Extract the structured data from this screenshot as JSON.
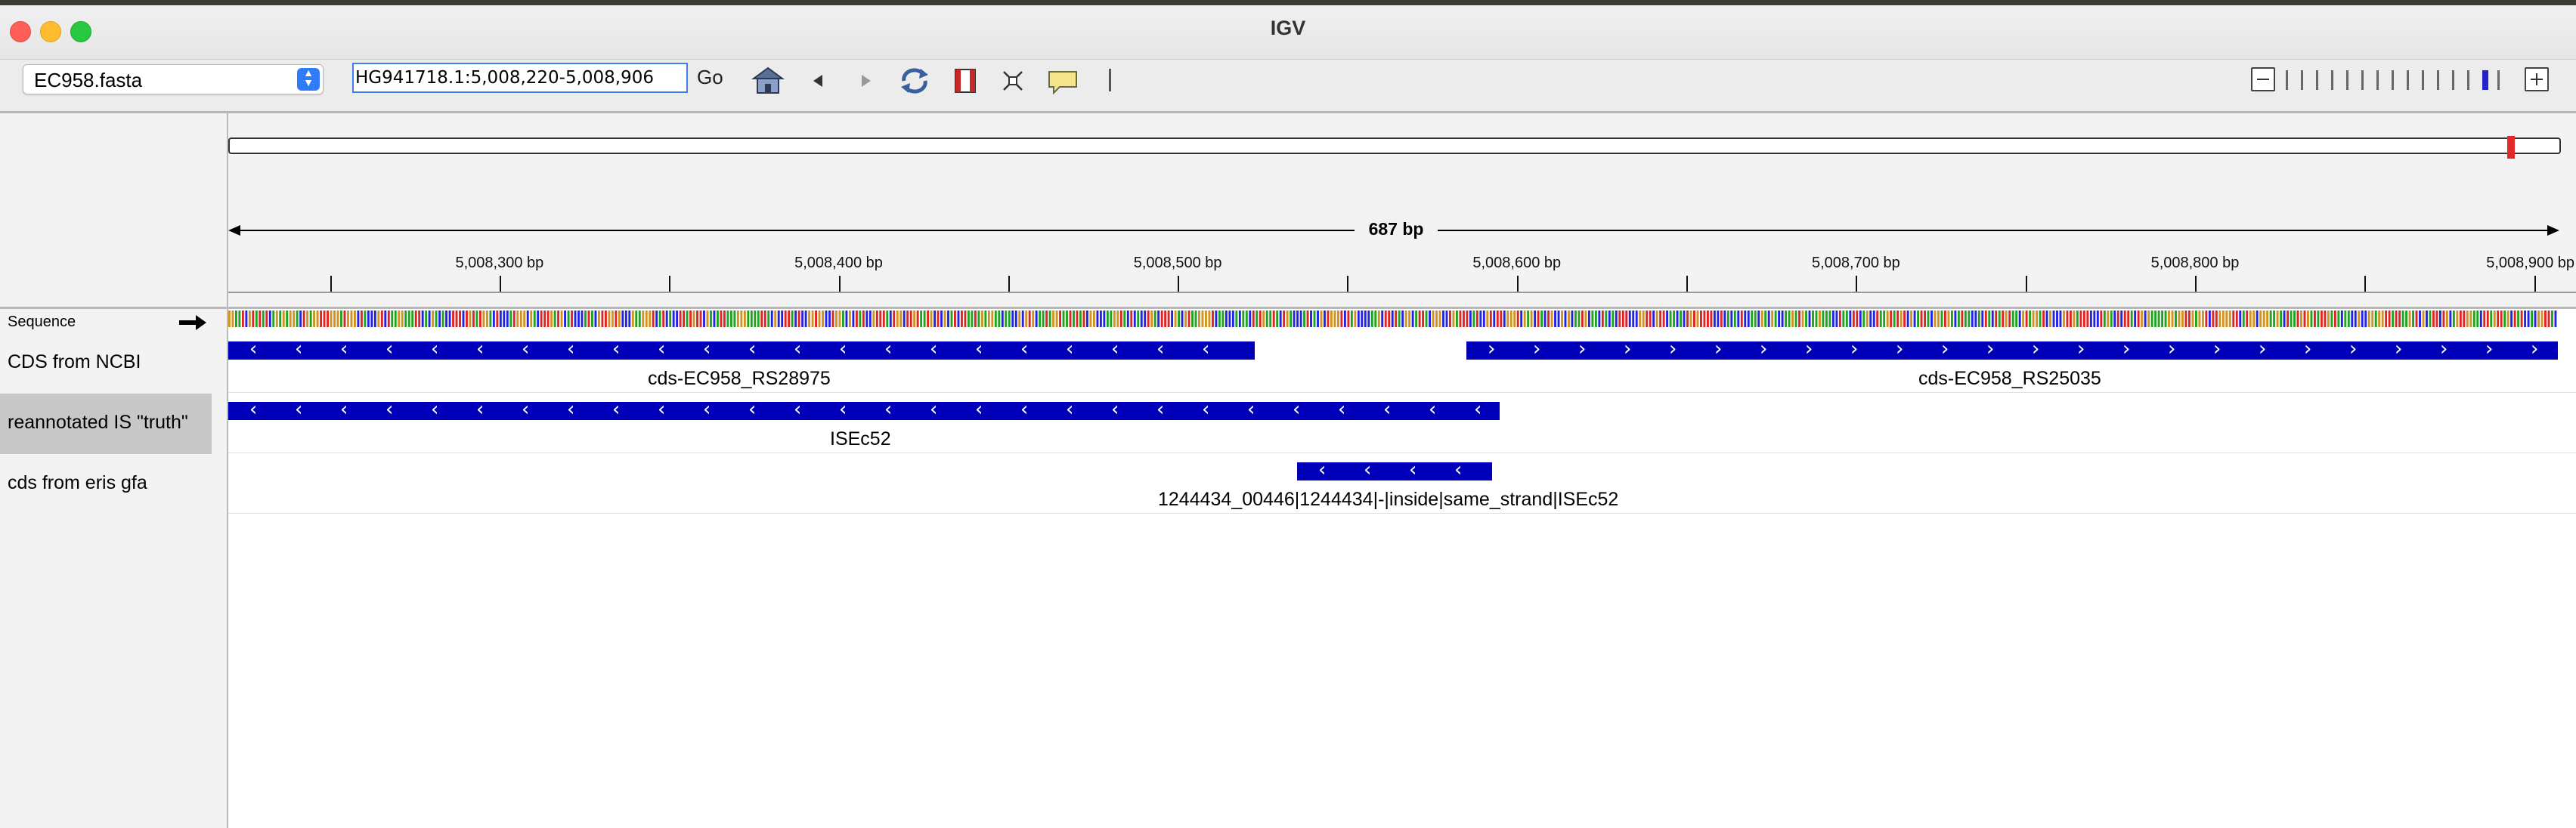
{
  "window": {
    "title": "IGV"
  },
  "toolbar": {
    "genome": "EC958.fasta",
    "locus": "HG941718.1:5,008,220-5,008,906",
    "go_label": "Go",
    "icons": [
      "home-icon",
      "back-icon",
      "forward-icon",
      "refresh-icon",
      "roi-icon",
      "resize-icon",
      "popup-info-icon",
      "divider"
    ]
  },
  "zoom": {
    "levels": 15,
    "current": 13
  },
  "ruler": {
    "span_label": "687 bp",
    "range_start": 5008220,
    "range_end": 5008906,
    "ticks": [
      "5,008,300 bp",
      "5,008,400 bp",
      "5,008,500 bp",
      "5,008,600 bp",
      "5,008,700 bp",
      "5,008,800 bp",
      "5,008,900 bp"
    ]
  },
  "tracks": [
    {
      "name": "Sequence"
    },
    {
      "name": "CDS from NCBI"
    },
    {
      "name": "reannotated IS \"truth\""
    },
    {
      "name": "cds from eris gfa"
    }
  ],
  "features": {
    "ncbi": [
      {
        "label": "cds-EC958_RS28975",
        "strand": "-"
      },
      {
        "label": "cds-EC958_RS25035",
        "strand": "+"
      }
    ],
    "truth": [
      {
        "label": "ISEc52",
        "strand": "-"
      }
    ],
    "eris": [
      {
        "label": "1244434_00446|1244434|-|inside|same_strand|ISEc52",
        "strand": "-"
      }
    ]
  },
  "colors": {
    "feature": "#0000b8",
    "ideogram_marker": "#e32a2a",
    "base_A": "#1fa41f",
    "base_C": "#2323e6",
    "base_G": "#d1921f",
    "base_T": "#e02424"
  }
}
